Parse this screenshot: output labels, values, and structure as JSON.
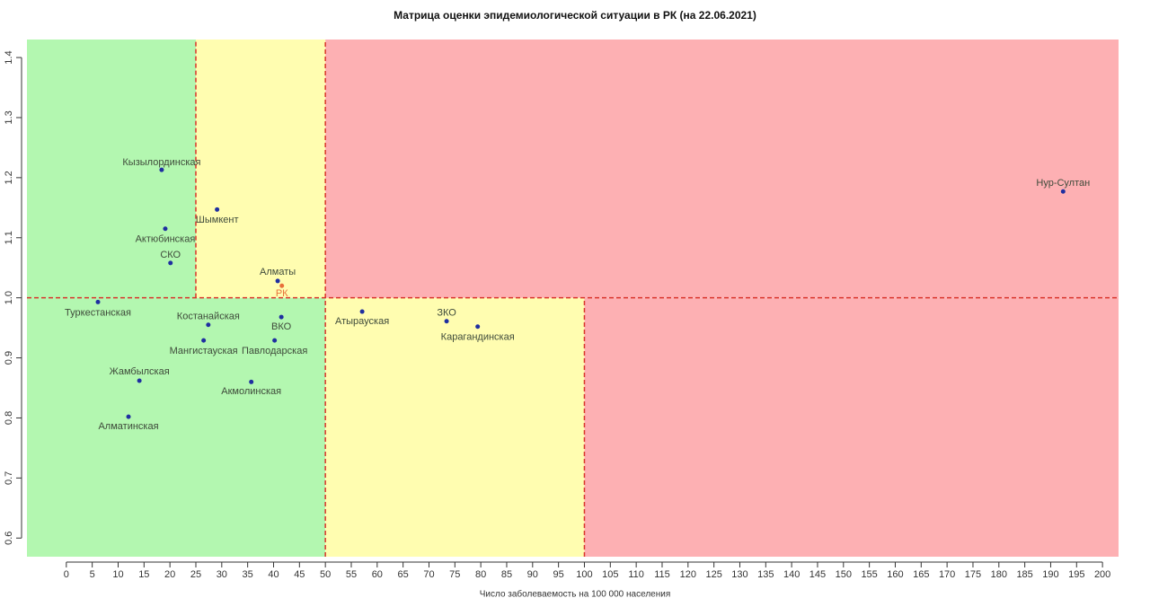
{
  "chart_data": {
    "type": "scatter",
    "title": "Матрица оценки эпидемиологической ситуации в РК (на 22.06.2021)",
    "x_label": "Число заболеваемость на 100 000 населения",
    "labels": [
      "Кызылординская",
      "Шымкент",
      "Актюбинская",
      "СКО",
      "Алматы",
      "РК",
      "Туркестанская",
      "Костанайская",
      "ВКО",
      "Мангистауская",
      "Павлодарская",
      "Жамбылская",
      "Акмолинская",
      "Алматинская",
      "Атырауская",
      "ЗКО",
      "Карагандинская",
      "Нур-Султан"
    ],
    "x": [
      18.4,
      29.1,
      19.1,
      20.1,
      40.8,
      41.6,
      6.1,
      27.4,
      41.5,
      26.5,
      40.2,
      14.1,
      35.7,
      12.0,
      57.1,
      73.4,
      79.4,
      192.4
    ],
    "values": [
      1.213,
      1.147,
      1.115,
      1.058,
      1.028,
      1.02,
      0.993,
      0.955,
      0.968,
      0.929,
      0.929,
      0.862,
      0.86,
      0.802,
      0.977,
      0.961,
      0.952,
      1.177
    ],
    "point_colors": [
      "#1f2fa0",
      "#1f2fa0",
      "#1f2fa0",
      "#1f2fa0",
      "#1f2fa0",
      "#e8703a",
      "#1f2fa0",
      "#1f2fa0",
      "#1f2fa0",
      "#1f2fa0",
      "#1f2fa0",
      "#1f2fa0",
      "#1f2fa0",
      "#1f2fa0",
      "#1f2fa0",
      "#1f2fa0",
      "#1f2fa0",
      "#1f2fa0"
    ],
    "label_colors": [
      "#3e4a3a",
      "#3e4a3a",
      "#3e4a3a",
      "#3e4a3a",
      "#3e4a3a",
      "#e8703a",
      "#3e4a3a",
      "#3e4a3a",
      "#3e4a3a",
      "#3e4a3a",
      "#3e4a3a",
      "#3e4a3a",
      "#3e4a3a",
      "#3e4a3a",
      "#3e4a3a",
      "#3e4a3a",
      "#3e4a3a",
      "#3e4a3a"
    ],
    "zones": [
      {
        "x": [
          -7.6,
          25
        ],
        "y": [
          0.569,
          1.43
        ],
        "color": "#b3f7b0"
      },
      {
        "x": [
          25,
          50
        ],
        "y": [
          0.569,
          1
        ],
        "color": "#b3f7b0"
      },
      {
        "x": [
          25,
          50
        ],
        "y": [
          1,
          1.43
        ],
        "color": "#fffdb0"
      },
      {
        "x": [
          50,
          100
        ],
        "y": [
          0.569,
          1
        ],
        "color": "#fffdb0"
      },
      {
        "x": [
          50,
          203.1
        ],
        "y": [
          1,
          1.43
        ],
        "color": "#fdb0b3"
      },
      {
        "x": [
          100,
          203.1
        ],
        "y": [
          0.569,
          1
        ],
        "color": "#fdb0b3"
      }
    ],
    "threshold_lines": [
      {
        "x": [
          25,
          25
        ],
        "y": [
          1,
          1.43
        ]
      },
      {
        "x": [
          50,
          50
        ],
        "y": [
          0.569,
          1.43
        ]
      },
      {
        "x": [
          100,
          100
        ],
        "y": [
          0.569,
          1
        ]
      },
      {
        "x": [
          -7.6,
          203.1
        ],
        "y": [
          1,
          1
        ]
      }
    ],
    "threshold_color": "#d9342b",
    "xlim": [
      -7.6,
      203.1
    ],
    "ylim": [
      0.569,
      1.43
    ],
    "xticks": [
      0,
      5,
      10,
      15,
      20,
      25,
      30,
      35,
      40,
      45,
      50,
      55,
      60,
      65,
      70,
      75,
      80,
      85,
      90,
      95,
      100,
      105,
      110,
      115,
      120,
      125,
      130,
      135,
      140,
      145,
      150,
      155,
      160,
      165,
      170,
      175,
      180,
      185,
      190,
      195,
      200
    ],
    "yticks": [
      0.6,
      0.7,
      0.8,
      0.9,
      {
        "value": 1,
        "label": "1.0"
      },
      1.1,
      1.2,
      1.3,
      1.4
    ]
  }
}
